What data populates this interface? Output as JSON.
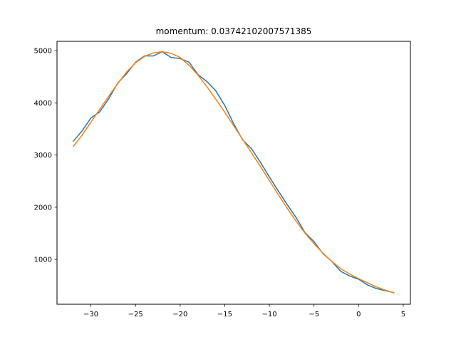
{
  "chart_data": {
    "type": "line",
    "title": "momentum: 0.03742102007571385",
    "xlabel": "",
    "ylabel": "",
    "xlim": [
      -33.8,
      5.8
    ],
    "ylim": [
      140,
      5180
    ],
    "xticks": [
      -30,
      -25,
      -20,
      -15,
      -10,
      -5,
      0,
      5
    ],
    "xtick_labels": [
      "−30",
      "−25",
      "−20",
      "−15",
      "−10",
      "−5",
      "0",
      "5"
    ],
    "yticks": [
      1000,
      2000,
      3000,
      4000,
      5000
    ],
    "ytick_labels": [
      "1000",
      "2000",
      "3000",
      "4000",
      "5000"
    ],
    "grid": false,
    "legend": "none",
    "series": [
      {
        "color": "#1f77b4",
        "x": [
          -32,
          -31,
          -30,
          -29,
          -28,
          -27,
          -26,
          -25,
          -24,
          -23,
          -22,
          -21,
          -20,
          -19,
          -18,
          -17,
          -16,
          -15,
          -14,
          -13,
          -12,
          -11,
          -10,
          -9,
          -8,
          -7,
          -6,
          -5,
          -4,
          -3,
          -2,
          -1,
          0,
          1,
          2,
          3,
          4
        ],
        "y": [
          3260,
          3460,
          3710,
          3830,
          4080,
          4380,
          4560,
          4780,
          4900,
          4900,
          4980,
          4870,
          4850,
          4780,
          4540,
          4410,
          4230,
          3950,
          3600,
          3290,
          3120,
          2860,
          2580,
          2310,
          2050,
          1800,
          1510,
          1340,
          1110,
          960,
          770,
          680,
          620,
          510,
          440,
          400,
          360
        ]
      },
      {
        "color": "#ff7f0e",
        "x": [
          -32,
          -31,
          -30,
          -29,
          -28,
          -27,
          -26,
          -25,
          -24,
          -23,
          -22,
          -21,
          -20,
          -19,
          -18,
          -17,
          -16,
          -15,
          -14,
          -13,
          -12,
          -11,
          -10,
          -9,
          -8,
          -7,
          -6,
          -5,
          -4,
          -3,
          -2,
          -1,
          0,
          1,
          2,
          3,
          4
        ],
        "y": [
          3160,
          3380,
          3630,
          3880,
          4130,
          4370,
          4590,
          4770,
          4890,
          4960,
          4980,
          4950,
          4870,
          4720,
          4530,
          4310,
          4070,
          3820,
          3560,
          3300,
          3040,
          2780,
          2510,
          2240,
          1980,
          1730,
          1500,
          1300,
          1120,
          960,
          820,
          720,
          630,
          550,
          470,
          410,
          355
        ]
      }
    ]
  }
}
